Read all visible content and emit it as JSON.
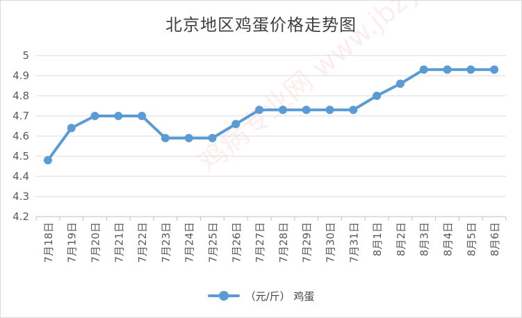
{
  "chart_data": {
    "type": "line",
    "title": "北京地区鸡蛋价格走势图",
    "categories": [
      "7月18日",
      "7月19日",
      "7月20日",
      "7月21日",
      "7月22日",
      "7月23日",
      "7月24日",
      "7月25日",
      "7月26日",
      "7月27日",
      "7月28日",
      "7月29日",
      "7月30日",
      "7月31日",
      "8月1日",
      "8月2日",
      "8月3日",
      "8月4日",
      "8月5日",
      "8月6日"
    ],
    "series": [
      {
        "name": "（元/斤） 鸡蛋",
        "values": [
          4.48,
          4.64,
          4.7,
          4.7,
          4.7,
          4.59,
          4.59,
          4.59,
          4.66,
          4.73,
          4.73,
          4.73,
          4.73,
          4.73,
          4.8,
          4.86,
          4.93,
          4.93,
          4.93,
          4.93
        ]
      }
    ],
    "ylim": [
      4.2,
      5.0
    ],
    "yticks": [
      "4.2",
      "4.3",
      "4.4",
      "4.5",
      "4.6",
      "4.7",
      "4.8",
      "4.9",
      "5"
    ],
    "grid": true,
    "legend_position": "bottom",
    "line_color": "#5b9bd5"
  },
  "watermark": "鸡病专业网 www.jbzyw.com"
}
